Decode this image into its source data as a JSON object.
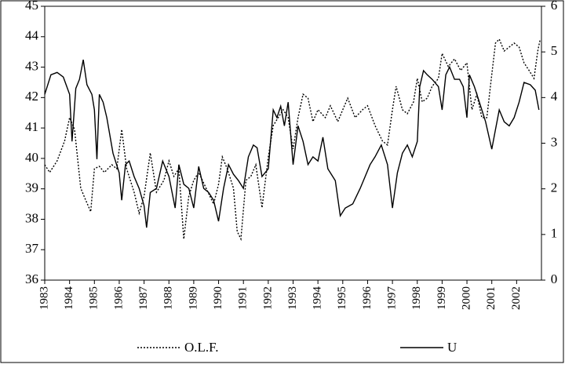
{
  "chart_data": {
    "type": "line",
    "xlim": [
      1983,
      2003
    ],
    "xticks": [
      1983,
      1984,
      1985,
      1986,
      1987,
      1988,
      1989,
      1990,
      1991,
      1992,
      1993,
      1994,
      1995,
      1996,
      1997,
      1998,
      1999,
      2000,
      2001,
      2002
    ],
    "ylim": [
      36,
      45
    ],
    "yticks": [
      36,
      37,
      38,
      39,
      40,
      41,
      42,
      43,
      44,
      45
    ],
    "y2lim": [
      0,
      6
    ],
    "y2ticks": [
      0,
      1,
      2,
      3,
      4,
      5,
      6
    ],
    "series": [
      {
        "name": "O.L.F.",
        "color": "#000000",
        "dash": "dotted",
        "x": [
          1983.0,
          1983.2,
          1983.5,
          1983.8,
          1984.0,
          1984.2,
          1984.45,
          1984.65,
          1984.85,
          1985.0,
          1985.2,
          1985.4,
          1985.7,
          1985.9,
          1986.1,
          1986.3,
          1986.6,
          1986.8,
          1987.0,
          1987.25,
          1987.5,
          1987.8,
          1988.0,
          1988.2,
          1988.4,
          1988.6,
          1988.8,
          1989.0,
          1989.2,
          1989.5,
          1989.8,
          1990.0,
          1990.15,
          1990.35,
          1990.6,
          1990.75,
          1990.9,
          1991.1,
          1991.3,
          1991.5,
          1991.75,
          1992.0,
          1992.2,
          1992.4,
          1992.6,
          1992.8,
          1993.0,
          1993.2,
          1993.4,
          1993.6,
          1993.8,
          1994.0,
          1994.3,
          1994.5,
          1994.8,
          1995.0,
          1995.2,
          1995.5,
          1995.8,
          1996.0,
          1996.3,
          1996.6,
          1996.8,
          1997.0,
          1997.15,
          1997.4,
          1997.6,
          1997.85,
          1998.0,
          1998.2,
          1998.4,
          1998.6,
          1998.85,
          1999.0,
          1999.25,
          1999.5,
          1999.75,
          2000.0,
          2000.2,
          2000.4,
          2000.6,
          2000.8,
          2001.0,
          2001.15,
          2001.3,
          2001.5,
          2001.7,
          2001.9,
          2002.1,
          2002.3,
          2002.5,
          2002.7,
          2002.85,
          2002.95
        ],
        "values": [
          39.79,
          39.54,
          39.92,
          40.57,
          41.34,
          40.95,
          39.02,
          38.63,
          38.25,
          39.66,
          39.74,
          39.54,
          39.79,
          39.66,
          40.95,
          39.66,
          38.89,
          38.2,
          38.76,
          40.18,
          38.89,
          39.28,
          39.92,
          39.41,
          39.66,
          37.35,
          38.76,
          39.28,
          39.54,
          39.02,
          38.5,
          39.15,
          40.05,
          39.66,
          39.02,
          37.6,
          37.35,
          39.28,
          39.41,
          39.79,
          38.38,
          40.05,
          41.08,
          41.34,
          41.6,
          41.34,
          40.31,
          41.34,
          42.11,
          41.98,
          41.21,
          41.6,
          41.34,
          41.73,
          41.21,
          41.6,
          41.98,
          41.34,
          41.6,
          41.73,
          41.08,
          40.57,
          40.44,
          41.6,
          42.37,
          41.6,
          41.47,
          41.86,
          42.63,
          41.86,
          41.98,
          42.37,
          42.63,
          43.45,
          43.02,
          43.27,
          42.89,
          43.14,
          41.6,
          42.11,
          41.34,
          41.34,
          42.76,
          43.79,
          43.92,
          43.53,
          43.66,
          43.79,
          43.66,
          43.14,
          42.89,
          42.63,
          43.53,
          43.92
        ]
      },
      {
        "name": "U",
        "color": "#000000",
        "dash": "solid",
        "axis": "y2",
        "x": [
          1983.0,
          1983.25,
          1983.5,
          1983.75,
          1984.0,
          1984.1,
          1984.25,
          1984.4,
          1984.55,
          1984.7,
          1984.9,
          1985.0,
          1985.1,
          1985.2,
          1985.35,
          1985.5,
          1985.75,
          1986.0,
          1986.1,
          1986.25,
          1986.4,
          1986.6,
          1986.8,
          1987.0,
          1987.1,
          1987.25,
          1987.5,
          1987.75,
          1988.0,
          1988.25,
          1988.4,
          1988.6,
          1988.8,
          1989.0,
          1989.2,
          1989.4,
          1989.6,
          1989.8,
          1990.0,
          1990.2,
          1990.4,
          1990.6,
          1990.8,
          1991.0,
          1991.2,
          1991.4,
          1991.55,
          1991.75,
          1992.0,
          1992.2,
          1992.35,
          1992.5,
          1992.65,
          1992.8,
          1993.0,
          1993.2,
          1993.4,
          1993.6,
          1993.8,
          1994.0,
          1994.2,
          1994.4,
          1994.7,
          1994.9,
          1995.1,
          1995.4,
          1995.7,
          1995.9,
          1996.1,
          1996.3,
          1996.55,
          1996.8,
          1997.0,
          1997.2,
          1997.4,
          1997.6,
          1997.8,
          1998.0,
          1998.1,
          1998.25,
          1998.4,
          1998.6,
          1998.85,
          1999.0,
          1999.15,
          1999.3,
          1999.5,
          1999.7,
          1999.85,
          2000.0,
          2000.1,
          2000.3,
          2000.5,
          2000.75,
          2001.0,
          2001.15,
          2001.3,
          2001.5,
          2001.7,
          2001.9,
          2002.1,
          2002.3,
          2002.55,
          2002.75,
          2002.9
        ],
        "values": [
          4.07,
          4.5,
          4.55,
          4.45,
          4.07,
          3.04,
          4.2,
          4.4,
          4.83,
          4.28,
          4.07,
          3.73,
          2.65,
          4.07,
          3.9,
          3.56,
          2.78,
          2.35,
          1.75,
          2.53,
          2.61,
          2.27,
          2.01,
          1.63,
          1.15,
          1.92,
          2.01,
          2.61,
          2.27,
          1.58,
          2.53,
          2.1,
          2.01,
          1.58,
          2.49,
          2.01,
          1.92,
          1.75,
          1.29,
          2.01,
          2.53,
          2.32,
          2.18,
          2.01,
          2.7,
          2.96,
          2.9,
          2.27,
          2.44,
          3.73,
          3.56,
          3.81,
          3.38,
          3.9,
          2.53,
          3.38,
          3.04,
          2.53,
          2.7,
          2.61,
          3.13,
          2.44,
          2.18,
          1.41,
          1.58,
          1.67,
          2.01,
          2.27,
          2.53,
          2.7,
          2.96,
          2.53,
          1.58,
          2.35,
          2.78,
          2.96,
          2.7,
          3.04,
          4.24,
          4.59,
          4.5,
          4.4,
          4.24,
          3.73,
          4.5,
          4.67,
          4.4,
          4.4,
          4.24,
          3.56,
          4.5,
          4.24,
          3.9,
          3.47,
          2.87,
          3.3,
          3.73,
          3.47,
          3.38,
          3.56,
          3.9,
          4.33,
          4.28,
          4.16,
          3.73
        ]
      }
    ]
  }
}
